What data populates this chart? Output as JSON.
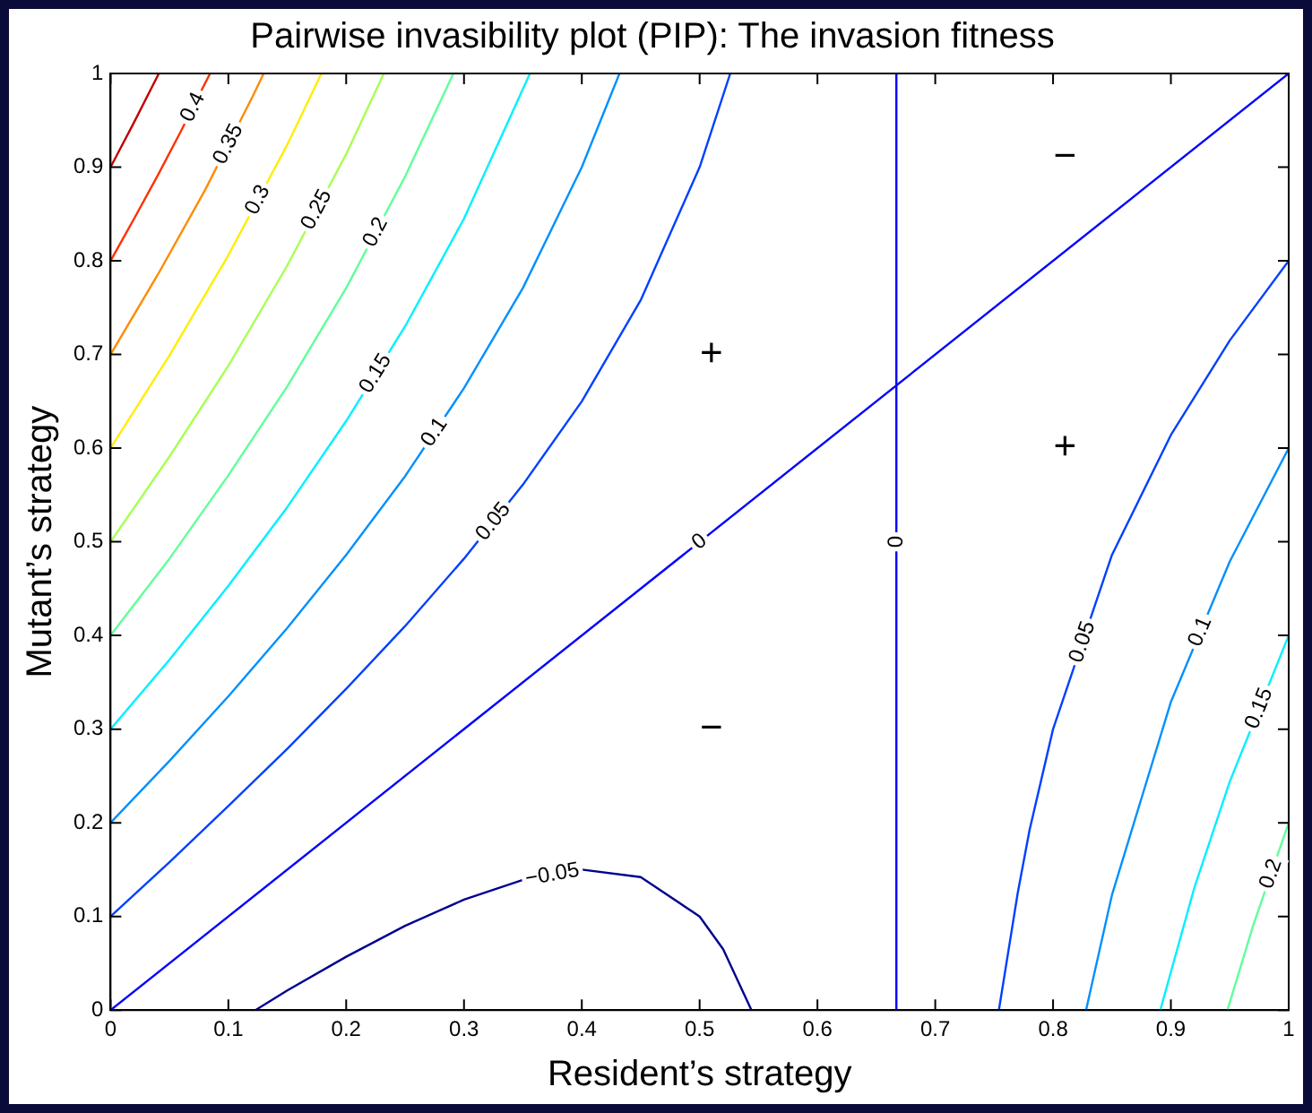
{
  "chart_data": {
    "type": "line",
    "title": "Pairwise invasibility plot (PIP): The invasion fitness",
    "xlabel": "Resident’s strategy",
    "ylabel": "Mutant’s strategy",
    "xlim": [
      0,
      1
    ],
    "ylim": [
      0,
      1
    ],
    "xticks": [
      0,
      0.1,
      0.2,
      0.3,
      0.4,
      0.5,
      0.6,
      0.7,
      0.8,
      0.9,
      1
    ],
    "yticks": [
      0,
      0.1,
      0.2,
      0.3,
      0.4,
      0.5,
      0.6,
      0.7,
      0.8,
      0.9,
      1
    ],
    "grid": false,
    "legend": false,
    "series": [
      {
        "color": "#c00000",
        "x": [
          0,
          0.02,
          0.041
        ],
        "values": [
          0.9,
          0.948,
          1
        ]
      },
      {
        "name": "0.4",
        "color": "#ff3000",
        "x": [
          0,
          0.02,
          0.04,
          0.06,
          0.08,
          0.0845
        ],
        "values": [
          0.8,
          0.845,
          0.891,
          0.939,
          0.989,
          1
        ]
      },
      {
        "name": "0.35",
        "color": "#ff8c00",
        "x": [
          0,
          0.04,
          0.08,
          0.12,
          0.13
        ],
        "values": [
          0.7,
          0.785,
          0.875,
          0.974,
          1
        ]
      },
      {
        "name": "0.3",
        "color": "#ffee00",
        "x": [
          0,
          0.05,
          0.1,
          0.15,
          0.179
        ],
        "values": [
          0.6,
          0.699,
          0.806,
          0.924,
          1
        ]
      },
      {
        "name": "0.25",
        "color": "#a8ff50",
        "x": [
          0,
          0.05,
          0.1,
          0.15,
          0.2,
          0.232
        ],
        "values": [
          0.5,
          0.591,
          0.688,
          0.795,
          0.914,
          1
        ]
      },
      {
        "name": "0.2",
        "color": "#60ff9a",
        "x": [
          0,
          0.05,
          0.1,
          0.15,
          0.2,
          0.25,
          0.291
        ],
        "values": [
          0.4,
          0.482,
          0.571,
          0.666,
          0.771,
          0.89,
          1
        ]
      },
      {
        "name": "0.15",
        "color": "#00f0ff",
        "x": [
          0,
          0.05,
          0.1,
          0.15,
          0.2,
          0.25,
          0.3,
          0.356
        ],
        "values": [
          0.3,
          0.374,
          0.453,
          0.537,
          0.629,
          0.73,
          0.845,
          1
        ]
      },
      {
        "name": "0.1",
        "color": "#0090ff",
        "x": [
          0,
          0.05,
          0.1,
          0.15,
          0.2,
          0.25,
          0.3,
          0.35,
          0.4,
          0.432
        ],
        "values": [
          0.2,
          0.266,
          0.335,
          0.408,
          0.486,
          0.57,
          0.664,
          0.771,
          0.9,
          1
        ]
      },
      {
        "name": "0.05",
        "color": "#0040ff",
        "x": [
          0,
          0.05,
          0.1,
          0.15,
          0.2,
          0.25,
          0.3,
          0.35,
          0.4,
          0.45,
          0.5,
          0.526
        ],
        "values": [
          0.1,
          0.158,
          0.218,
          0.279,
          0.343,
          0.41,
          0.482,
          0.561,
          0.65,
          0.758,
          0.9,
          1
        ]
      },
      {
        "name": "0",
        "color": "#0000ff",
        "x": [
          0,
          1
        ],
        "values": [
          0,
          1
        ]
      },
      {
        "name": "0",
        "color": "#0000ff",
        "x": [
          0.667,
          0.667
        ],
        "values": [
          0,
          1
        ]
      },
      {
        "name": "−0.05",
        "color": "#00008f",
        "x": [
          0.123,
          0.15,
          0.2,
          0.25,
          0.3,
          0.35,
          0.4,
          0.45,
          0.5,
          0.52,
          0.544
        ],
        "values": [
          0,
          0.021,
          0.057,
          0.09,
          0.118,
          0.139,
          0.15,
          0.142,
          0.1,
          0.065,
          0
        ]
      },
      {
        "name": "0.05",
        "color": "#0040ff",
        "x": [
          0.754,
          0.77,
          0.78,
          0.8,
          0.85,
          0.9,
          0.95,
          1
        ],
        "values": [
          0,
          0.125,
          0.192,
          0.3,
          0.486,
          0.614,
          0.715,
          0.8
        ]
      },
      {
        "name": "0.1",
        "color": "#0090ff",
        "x": [
          0.828,
          0.85,
          0.9,
          0.95,
          1
        ],
        "values": [
          0,
          0.123,
          0.329,
          0.479,
          0.6
        ]
      },
      {
        "name": "0.15",
        "color": "#00f0ff",
        "x": [
          0.891,
          0.92,
          0.95,
          1
        ],
        "values": [
          0,
          0.131,
          0.244,
          0.4
        ]
      },
      {
        "name": "0.2",
        "color": "#60ff9a",
        "x": [
          0.948,
          0.97,
          1
        ],
        "values": [
          0,
          0.091,
          0.2
        ]
      }
    ],
    "annotations": [
      "+",
      "+",
      "−",
      "−"
    ]
  }
}
